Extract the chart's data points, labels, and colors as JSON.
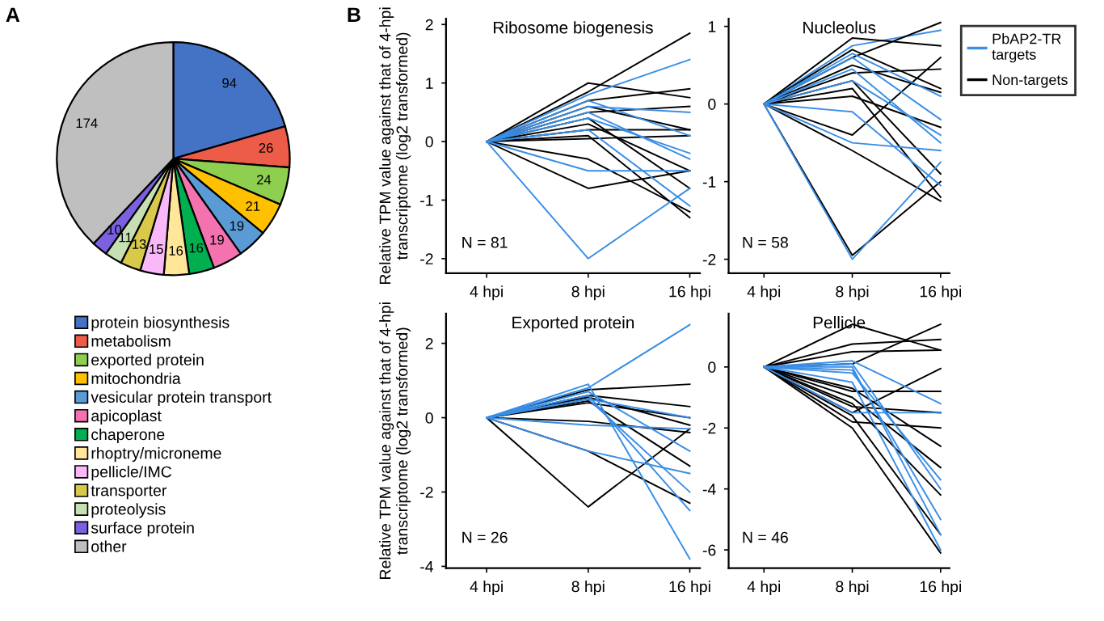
{
  "chart_data": [
    {
      "type": "pie",
      "categories": [
        "protein biosynthesis",
        "metabolism",
        "exported protein",
        "mitochondria",
        "vesicular protein transport",
        "apicoplast",
        "chaperone",
        "rhoptry/microneme",
        "pellicle/IMC",
        "transporter",
        "proteolysis",
        "surface protein",
        "other"
      ],
      "values": [
        94,
        26,
        24,
        21,
        19,
        19,
        16,
        16,
        15,
        13,
        11,
        10,
        174
      ],
      "colors": [
        "#4472c4",
        "#ed5c48",
        "#8fcf50",
        "#ffc000",
        "#5b9bd5",
        "#f472b0",
        "#00b050",
        "#ffe699",
        "#f9b8f7",
        "#d9c94b",
        "#c6e0b4",
        "#7b61e0",
        "#bfbfbf"
      ],
      "data_labels": true,
      "legend": "bottom",
      "annotations": [
        "A"
      ]
    },
    {
      "type": "line",
      "title": "Ribosome biogenesis",
      "ylabel": "Relative TPM value against that of 4-hpi\ntranscriptome (log2 transformed)",
      "categories": [
        "4 hpi",
        "8 hpi",
        "16 hpi"
      ],
      "ylim": [
        -2.25,
        2.1
      ],
      "yticks": [
        -2,
        -1,
        0,
        1,
        2
      ],
      "grid": false,
      "marker": "none",
      "line_style": "solid",
      "annotations": [
        "B",
        "N = 81"
      ],
      "series": [
        {
          "color": "#000000",
          "values": [
            0,
            1.0,
            0.75
          ]
        },
        {
          "color": "#000000",
          "values": [
            0,
            0.85,
            1.85
          ]
        },
        {
          "color": "#000000",
          "values": [
            0,
            0.7,
            0.9
          ]
        },
        {
          "color": "#000000",
          "values": [
            0,
            0.6,
            0.2
          ]
        },
        {
          "color": "#000000",
          "values": [
            0,
            0.3,
            -0.5
          ]
        },
        {
          "color": "#000000",
          "values": [
            0,
            0.1,
            -1.3
          ]
        },
        {
          "color": "#000000",
          "values": [
            0,
            -0.3,
            -1.2
          ]
        },
        {
          "color": "#000000",
          "values": [
            0,
            -0.8,
            -0.5
          ]
        },
        {
          "color": "#000000",
          "values": [
            0,
            0.5,
            0.6
          ]
        },
        {
          "color": "#000000",
          "values": [
            0,
            0.2,
            0.2
          ]
        },
        {
          "color": "#000000",
          "values": [
            0,
            0.4,
            -0.8
          ]
        },
        {
          "color": "#000000",
          "values": [
            0,
            0.05,
            0.1
          ]
        },
        {
          "color": "#3a8ee6",
          "values": [
            0,
            0.8,
            1.4
          ]
        },
        {
          "color": "#3a8ee6",
          "values": [
            0,
            0.6,
            0.5
          ]
        },
        {
          "color": "#3a8ee6",
          "values": [
            0,
            0.4,
            -0.2
          ]
        },
        {
          "color": "#3a8ee6",
          "values": [
            0,
            -2.0,
            -0.8
          ]
        },
        {
          "color": "#3a8ee6",
          "values": [
            0,
            -0.5,
            -0.5
          ]
        },
        {
          "color": "#3a8ee6",
          "values": [
            0,
            0.7,
            0.1
          ]
        },
        {
          "color": "#3a8ee6",
          "values": [
            0,
            0.2,
            -1.1
          ]
        },
        {
          "color": "#3a8ee6",
          "values": [
            0,
            0.5,
            -0.3
          ]
        }
      ]
    },
    {
      "type": "line",
      "title": "Nucleolus",
      "categories": [
        "4 hpi",
        "8 hpi",
        "16 hpi"
      ],
      "ylim": [
        -2.18,
        1.1
      ],
      "yticks": [
        -2,
        -1,
        0,
        1
      ],
      "grid": false,
      "marker": "none",
      "line_style": "solid",
      "legend": "right",
      "annotations": [
        "N = 58"
      ],
      "series": [
        {
          "name": "PbAP2-TR\ntargets",
          "color": "#3a8ee6",
          "values": [
            0,
            0.75,
            0.95
          ]
        },
        {
          "name": "Non-targets",
          "color": "#000000",
          "values": [
            0,
            0.85,
            0.75
          ]
        },
        {
          "color": "#000000",
          "values": [
            0,
            0.6,
            1.05
          ]
        },
        {
          "color": "#000000",
          "values": [
            0,
            0.7,
            0.2
          ]
        },
        {
          "color": "#000000",
          "values": [
            0,
            0.4,
            0.45
          ]
        },
        {
          "color": "#000000",
          "values": [
            0,
            -0.4,
            0.6
          ]
        },
        {
          "color": "#000000",
          "values": [
            0,
            -0.6,
            -1.25
          ]
        },
        {
          "color": "#000000",
          "values": [
            0,
            0.3,
            -0.9
          ]
        },
        {
          "color": "#000000",
          "values": [
            0,
            0.1,
            -0.3
          ]
        },
        {
          "color": "#000000",
          "values": [
            0,
            -1.95,
            -1.0
          ]
        },
        {
          "color": "#000000",
          "values": [
            0,
            0.5,
            0.15
          ]
        },
        {
          "color": "#000000",
          "values": [
            0,
            0.2,
            -1.2
          ]
        },
        {
          "color": "#3a8ee6",
          "values": [
            0,
            0.6,
            -0.2
          ]
        },
        {
          "color": "#3a8ee6",
          "values": [
            0,
            -0.5,
            -0.6
          ]
        },
        {
          "color": "#3a8ee6",
          "values": [
            0,
            -2.0,
            -0.75
          ]
        },
        {
          "color": "#3a8ee6",
          "values": [
            0,
            0.45,
            -0.5
          ]
        },
        {
          "color": "#3a8ee6",
          "values": [
            0,
            0.65,
            0.1
          ]
        },
        {
          "color": "#3a8ee6",
          "values": [
            0,
            -0.1,
            -1.05
          ]
        },
        {
          "color": "#3a8ee6",
          "values": [
            0,
            0.3,
            -0.4
          ]
        }
      ]
    },
    {
      "type": "line",
      "title": "Exported protein",
      "ylabel": "Relative TPM value against that of 4-hpi\ntranscriptome (log2 transformed)",
      "categories": [
        "4 hpi",
        "8 hpi",
        "16 hpi"
      ],
      "ylim": [
        -4.05,
        2.8
      ],
      "yticks": [
        -4,
        -2,
        0,
        2
      ],
      "grid": false,
      "marker": "none",
      "line_style": "solid",
      "annotations": [
        "N = 26"
      ],
      "series": [
        {
          "color": "#000000",
          "values": [
            0,
            0.75,
            0.9
          ]
        },
        {
          "color": "#000000",
          "values": [
            0,
            0.6,
            0.3
          ]
        },
        {
          "color": "#000000",
          "values": [
            0,
            -2.4,
            -0.3
          ]
        },
        {
          "color": "#000000",
          "values": [
            0,
            -0.9,
            -2.3
          ]
        },
        {
          "color": "#000000",
          "values": [
            0,
            0.45,
            -1.3
          ]
        },
        {
          "color": "#000000",
          "values": [
            0,
            0.55,
            -0.2
          ]
        },
        {
          "color": "#000000",
          "values": [
            0,
            -0.1,
            -0.4
          ]
        },
        {
          "color": "#000000",
          "values": [
            0,
            0.4,
            0.0
          ]
        },
        {
          "color": "#3a8ee6",
          "values": [
            0,
            0.8,
            2.5
          ]
        },
        {
          "color": "#3a8ee6",
          "values": [
            0,
            0.9,
            -3.8
          ]
        },
        {
          "color": "#3a8ee6",
          "values": [
            0,
            0.6,
            -2.5
          ]
        },
        {
          "color": "#3a8ee6",
          "values": [
            0,
            -0.9,
            -1.5
          ]
        },
        {
          "color": "#3a8ee6",
          "values": [
            0,
            0.5,
            -2.0
          ]
        },
        {
          "color": "#3a8ee6",
          "values": [
            0,
            0.7,
            -0.9
          ]
        },
        {
          "color": "#3a8ee6",
          "values": [
            0,
            0.5,
            0.0
          ]
        },
        {
          "color": "#3a8ee6",
          "values": [
            0,
            -0.2,
            -0.3
          ]
        }
      ]
    },
    {
      "type": "line",
      "title": "Pellicle",
      "categories": [
        "4 hpi",
        "8 hpi",
        "16 hpi"
      ],
      "ylim": [
        -6.6,
        1.75
      ],
      "yticks": [
        -6,
        -4,
        -2,
        0
      ],
      "grid": false,
      "marker": "none",
      "line_style": "solid",
      "annotations": [
        "N = 46"
      ],
      "series": [
        {
          "color": "#000000",
          "values": [
            0,
            1.4,
            0.55
          ]
        },
        {
          "color": "#000000",
          "values": [
            0,
            0.75,
            0.9
          ]
        },
        {
          "color": "#000000",
          "values": [
            0,
            0.5,
            0.55
          ]
        },
        {
          "color": "#000000",
          "values": [
            0,
            0.1,
            1.4
          ]
        },
        {
          "color": "#000000",
          "values": [
            0,
            -1.5,
            -0.05
          ]
        },
        {
          "color": "#000000",
          "values": [
            0,
            -0.8,
            -0.8
          ]
        },
        {
          "color": "#000000",
          "values": [
            0,
            -1.3,
            -1.5
          ]
        },
        {
          "color": "#000000",
          "values": [
            0,
            -2.0,
            -6.1
          ]
        },
        {
          "color": "#000000",
          "values": [
            0,
            -1.6,
            -5.5
          ]
        },
        {
          "color": "#000000",
          "values": [
            0,
            -1.2,
            -4.2
          ]
        },
        {
          "color": "#000000",
          "values": [
            0,
            -0.7,
            -2.6
          ]
        },
        {
          "color": "#000000",
          "values": [
            0,
            -1.8,
            -2.0
          ]
        },
        {
          "color": "#000000",
          "values": [
            0,
            -1.0,
            -3.3
          ]
        },
        {
          "color": "#3a8ee6",
          "values": [
            0,
            0.2,
            -1.2
          ]
        },
        {
          "color": "#3a8ee6",
          "values": [
            0,
            0.1,
            -4.0
          ]
        },
        {
          "color": "#3a8ee6",
          "values": [
            0,
            -0.1,
            -5.0
          ]
        },
        {
          "color": "#3a8ee6",
          "values": [
            0,
            -0.5,
            -6.0
          ]
        },
        {
          "color": "#3a8ee6",
          "values": [
            0,
            -1.5,
            -1.5
          ]
        },
        {
          "color": "#3a8ee6",
          "values": [
            0,
            -0.2,
            -3.7
          ]
        },
        {
          "color": "#3a8ee6",
          "values": [
            0,
            0.0,
            -5.5
          ]
        }
      ]
    }
  ]
}
